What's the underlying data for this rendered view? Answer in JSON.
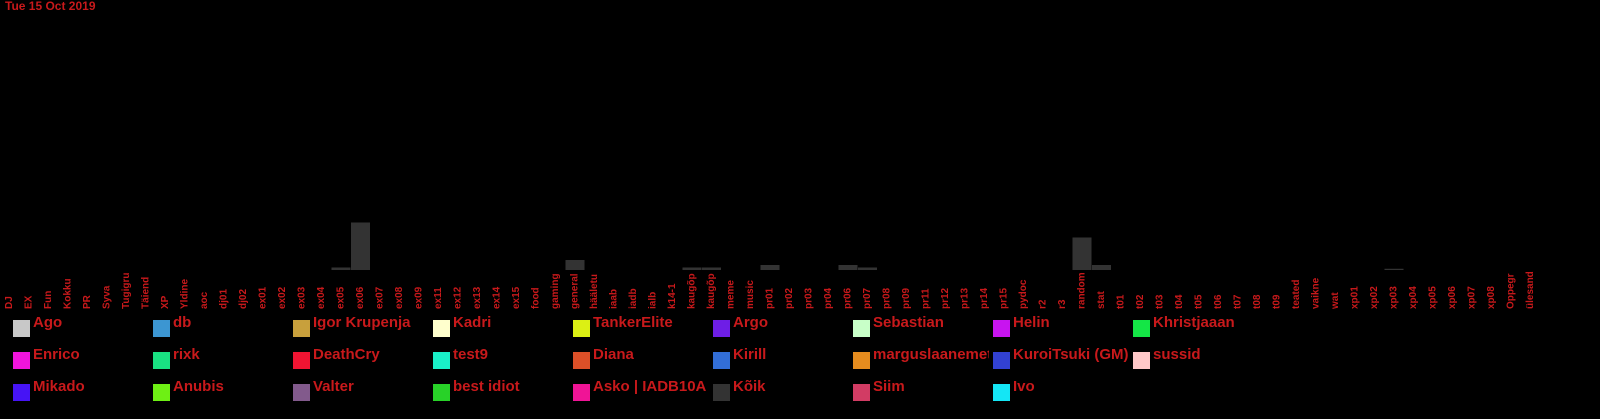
{
  "date_label": "Tue 15 Oct 2019",
  "colors": {
    "background": "#000000",
    "text": "#c8191b",
    "bar": "#333333"
  },
  "chart_data": {
    "type": "bar",
    "stacked": true,
    "title": "",
    "xlabel": "",
    "ylabel": "",
    "ylim": [
      0,
      100
    ],
    "grid": false,
    "legend_position": "bottom",
    "categories": [
      "DJ",
      "EX",
      "Fun",
      "Kokku",
      "PR",
      "Syva",
      "Tugigru",
      "Täiend",
      "XP",
      "Yldine",
      "aoc",
      "dj01",
      "dj02",
      "ex01",
      "ex02",
      "ex03",
      "ex04",
      "ex05",
      "ex06",
      "ex07",
      "ex08",
      "ex09",
      "ex11",
      "ex12",
      "ex13",
      "ex14",
      "ex15",
      "food",
      "gaming",
      "general",
      "hääletu",
      "iaab",
      "iadb",
      "ialb",
      "k14-1",
      "kaugõp",
      "kaugõp",
      "meme",
      "music",
      "pr01",
      "pr02",
      "pr03",
      "pr04",
      "pr06",
      "pr07",
      "pr08",
      "pr09",
      "pr11",
      "pr12",
      "pr13",
      "pr14",
      "pr15",
      "pydoc",
      "r2",
      "r3",
      "random",
      "stat",
      "t01",
      "t02",
      "t03",
      "t04",
      "t05",
      "t06",
      "t07",
      "t08",
      "t09",
      "teated",
      "vaikne",
      "wat",
      "xp01",
      "xp02",
      "xp03",
      "xp04",
      "xp05",
      "xp06",
      "xp07",
      "xp08",
      "Oppegr",
      "ülesand"
    ],
    "series": [
      {
        "name": "Ago",
        "color": "#c8c8c8",
        "values": {}
      },
      {
        "name": "Enrico",
        "color": "#f014dc",
        "values": {}
      },
      {
        "name": "Mikado",
        "color": "#4614f5",
        "values": {}
      },
      {
        "name": "db",
        "color": "#3c96d2",
        "values": {}
      },
      {
        "name": "rixk",
        "color": "#19e182",
        "values": {}
      },
      {
        "name": "Anubis",
        "color": "#6ef014",
        "values": {}
      },
      {
        "name": "Igor Krupenja",
        "color": "#c8a03c",
        "values": {}
      },
      {
        "name": "DeathCry",
        "color": "#f01432",
        "values": {}
      },
      {
        "name": "Valter",
        "color": "#825a8c",
        "values": {}
      },
      {
        "name": "Kadri",
        "color": "#ffffcd",
        "values": {}
      },
      {
        "name": "test9",
        "color": "#19f0c8",
        "values": {}
      },
      {
        "name": "best idiot",
        "color": "#28d228",
        "values": {}
      },
      {
        "name": "TankerElite",
        "color": "#dcf014",
        "values": {}
      },
      {
        "name": "Diana",
        "color": "#dc5028",
        "values": {}
      },
      {
        "name": "Asko | IADB10A",
        "color": "#f01496",
        "values": {}
      },
      {
        "name": "Argo",
        "color": "#6e1ee6",
        "values": {}
      },
      {
        "name": "Kirill",
        "color": "#326ed7",
        "values": {}
      },
      {
        "name": "Kõik",
        "color": "#333333",
        "values": {
          "ex05": 1,
          "ex06": 19,
          "general": 4,
          "kaugõp": 1,
          "pr01": 2,
          "pr06": 2,
          "pr07": 1,
          "random": 13,
          "stat": 2,
          "xp03": 0.5
        }
      },
      {
        "name": "Sebastian",
        "color": "#c8ffc8",
        "values": {}
      },
      {
        "name": "marguslaanemets",
        "color": "#e68c1e",
        "values": {}
      },
      {
        "name": "Siim",
        "color": "#d23c64",
        "values": {}
      },
      {
        "name": "Helin",
        "color": "#c814f0",
        "values": {}
      },
      {
        "name": "KuroiTsuki (GM)",
        "color": "#3241d2",
        "values": {}
      },
      {
        "name": "Ivo",
        "color": "#14e6f5",
        "values": {}
      },
      {
        "name": "Khristjaaan",
        "color": "#14e646",
        "values": {}
      },
      {
        "name": "sussid",
        "color": "#ffc8c8",
        "values": {}
      }
    ]
  }
}
